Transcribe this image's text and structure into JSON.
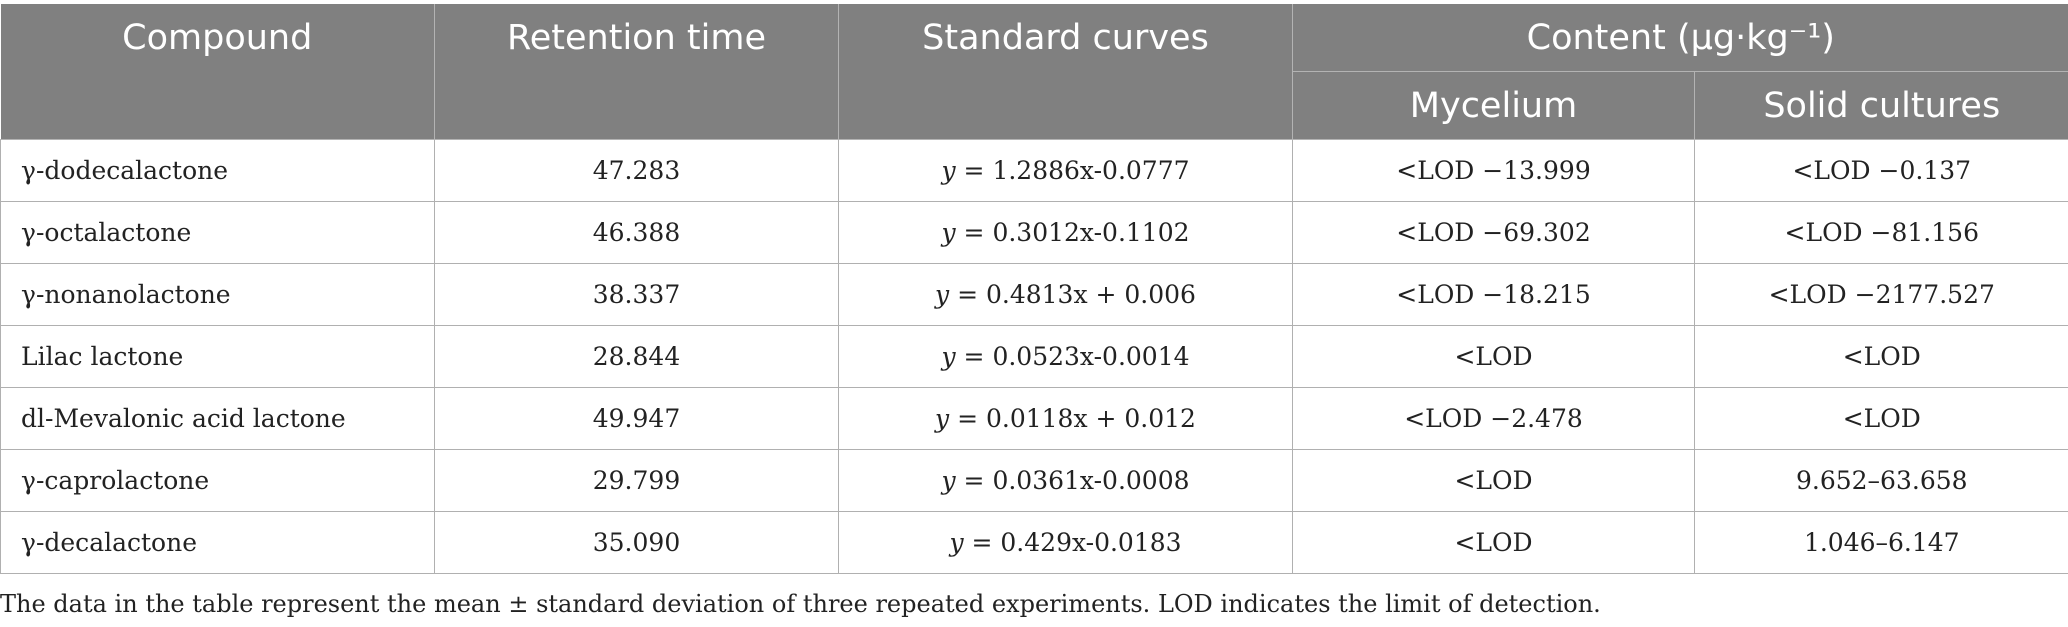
{
  "table": {
    "headers": {
      "compound": "Compound",
      "retention_time": "Retention time",
      "standard_curves": "Standard curves",
      "content": "Content (μg·kg⁻¹)",
      "mycelium": "Mycelium",
      "solid_cultures": "Solid cultures"
    },
    "rows": [
      {
        "compound": "γ-dodecalactone",
        "retention_time": "47.283",
        "curve_var": "y",
        "curve_rest": " = 1.2886x-0.0777",
        "mycelium": "<LOD −13.999",
        "solid_cultures": "<LOD −0.137"
      },
      {
        "compound": "γ-octalactone",
        "retention_time": "46.388",
        "curve_var": "y",
        "curve_rest": " = 0.3012x-0.1102",
        "mycelium": "<LOD −69.302",
        "solid_cultures": "<LOD −81.156"
      },
      {
        "compound": "γ-nonanolactone",
        "retention_time": "38.337",
        "curve_var": "y",
        "curve_rest": " = 0.4813x + 0.006",
        "mycelium": "<LOD −18.215",
        "solid_cultures": "<LOD −2177.527"
      },
      {
        "compound": "Lilac lactone",
        "retention_time": "28.844",
        "curve_var": "y",
        "curve_rest": " = 0.0523x-0.0014",
        "mycelium": "<LOD",
        "solid_cultures": "<LOD"
      },
      {
        "compound": "dl-Mevalonic acid lactone",
        "retention_time": "49.947",
        "curve_var": "y",
        "curve_rest": " = 0.0118x + 0.012",
        "mycelium": "<LOD −2.478",
        "solid_cultures": "<LOD"
      },
      {
        "compound": "γ-caprolactone",
        "retention_time": "29.799",
        "curve_var": "y",
        "curve_rest": " = 0.0361x-0.0008",
        "mycelium": "<LOD",
        "solid_cultures": "9.652–63.658"
      },
      {
        "compound": "γ-decalactone",
        "retention_time": "35.090",
        "curve_var": "y",
        "curve_rest": " = 0.429x-0.0183",
        "mycelium": "<LOD",
        "solid_cultures": "1.046–6.147"
      }
    ]
  },
  "footnote": "The data in the table represent the mean ± standard deviation of three repeated experiments. LOD indicates the limit of detection."
}
